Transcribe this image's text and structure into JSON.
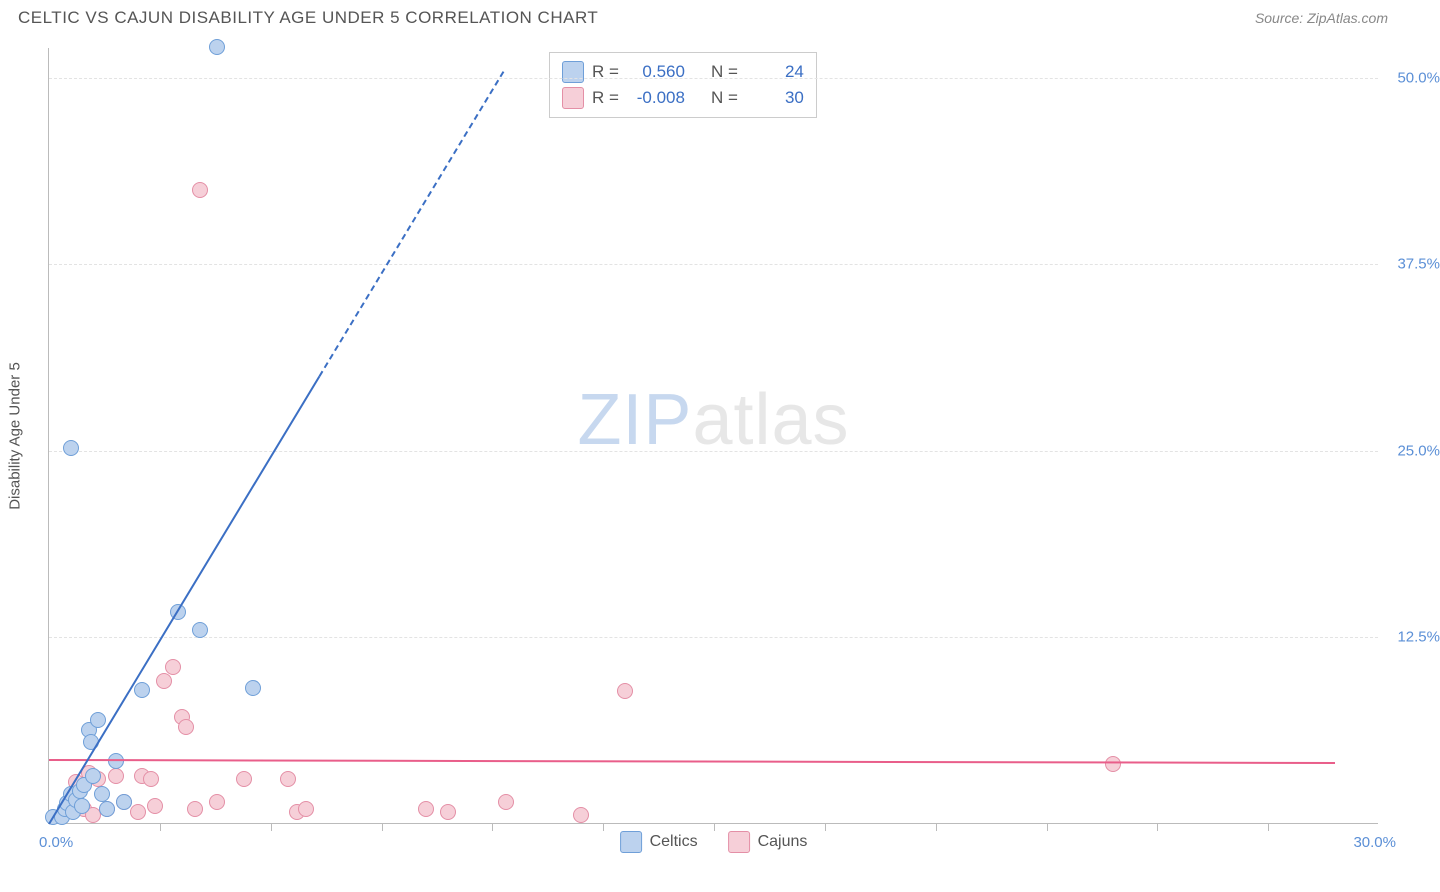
{
  "header": {
    "title": "CELTIC VS CAJUN DISABILITY AGE UNDER 5 CORRELATION CHART",
    "source": "Source: ZipAtlas.com"
  },
  "chart": {
    "type": "scatter",
    "y_axis_title": "Disability Age Under 5",
    "xlim": [
      0,
      30
    ],
    "ylim": [
      0,
      52
    ],
    "x_zero_label": "0.0%",
    "x_max_label": "30.0%",
    "x_ticks": [
      2.5,
      5,
      7.5,
      10,
      12.5,
      15,
      17.5,
      20,
      22.5,
      25,
      27.5
    ],
    "y_gridlines": [
      {
        "value": 12.5,
        "label": "12.5%"
      },
      {
        "value": 25.0,
        "label": "25.0%"
      },
      {
        "value": 37.5,
        "label": "37.5%"
      },
      {
        "value": 50.0,
        "label": "50.0%"
      }
    ],
    "background_color": "#ffffff",
    "grid_color": "#e3e3e3",
    "axis_color": "#bbbbbb",
    "tick_label_color": "#5b8fd6"
  },
  "series": {
    "celtics": {
      "label": "Celtics",
      "fill_color": "#bcd2ee",
      "stroke_color": "#6f9fd8",
      "point_radius": 8,
      "trend": {
        "r": "0.560",
        "n": "24",
        "slope_start": [
          0,
          0
        ],
        "slope_end_solid": [
          6.1,
          30
        ],
        "slope_end_dash": [
          9.3,
          52
        ],
        "color": "#3b6fc4"
      },
      "points": [
        [
          0.1,
          0.5
        ],
        [
          0.3,
          0.5
        ],
        [
          0.35,
          1.0
        ],
        [
          0.4,
          1.4
        ],
        [
          0.5,
          2.0
        ],
        [
          0.55,
          0.8
        ],
        [
          0.6,
          1.6
        ],
        [
          0.7,
          2.2
        ],
        [
          0.75,
          1.2
        ],
        [
          0.8,
          2.6
        ],
        [
          0.9,
          6.3
        ],
        [
          0.95,
          5.5
        ],
        [
          1.0,
          3.2
        ],
        [
          1.1,
          7.0
        ],
        [
          1.3,
          1.0
        ],
        [
          1.5,
          4.2
        ],
        [
          2.1,
          9.0
        ],
        [
          2.9,
          14.2
        ],
        [
          3.4,
          13.0
        ],
        [
          3.8,
          52.1
        ],
        [
          4.6,
          9.1
        ],
        [
          0.5,
          25.2
        ],
        [
          1.7,
          1.5
        ],
        [
          1.2,
          2.0
        ]
      ]
    },
    "cajuns": {
      "label": "Cajuns",
      "fill_color": "#f6cfd8",
      "stroke_color": "#e48fa6",
      "point_radius": 8,
      "trend": {
        "r": "-0.008",
        "n": "30",
        "slope_start": [
          0,
          4.3
        ],
        "slope_end_solid": [
          29,
          4.1
        ],
        "color": "#e95e8a"
      },
      "points": [
        [
          0.4,
          1.0
        ],
        [
          0.6,
          2.8
        ],
        [
          0.8,
          1.0
        ],
        [
          0.9,
          3.4
        ],
        [
          1.0,
          0.6
        ],
        [
          1.1,
          3.0
        ],
        [
          1.3,
          1.0
        ],
        [
          1.5,
          3.2
        ],
        [
          1.7,
          1.5
        ],
        [
          2.0,
          0.8
        ],
        [
          2.1,
          3.2
        ],
        [
          2.3,
          3.0
        ],
        [
          2.6,
          9.6
        ],
        [
          2.8,
          10.5
        ],
        [
          3.0,
          7.2
        ],
        [
          3.1,
          6.5
        ],
        [
          3.3,
          1.0
        ],
        [
          3.8,
          1.5
        ],
        [
          4.4,
          3.0
        ],
        [
          5.4,
          3.0
        ],
        [
          5.6,
          0.8
        ],
        [
          5.8,
          1.0
        ],
        [
          8.5,
          1.0
        ],
        [
          9.0,
          0.8
        ],
        [
          10.3,
          1.5
        ],
        [
          12.0,
          0.6
        ],
        [
          13.0,
          8.9
        ],
        [
          24.0,
          4.0
        ],
        [
          3.4,
          42.5
        ],
        [
          2.4,
          1.2
        ]
      ]
    }
  },
  "stats_legend": {
    "r_label": "R =",
    "n_label": "N =",
    "value_color_celtics": "#3b6fc4",
    "value_color_cajuns": "#3b6fc4"
  },
  "watermark": {
    "zip": "ZIP",
    "atlas": "atlas"
  }
}
